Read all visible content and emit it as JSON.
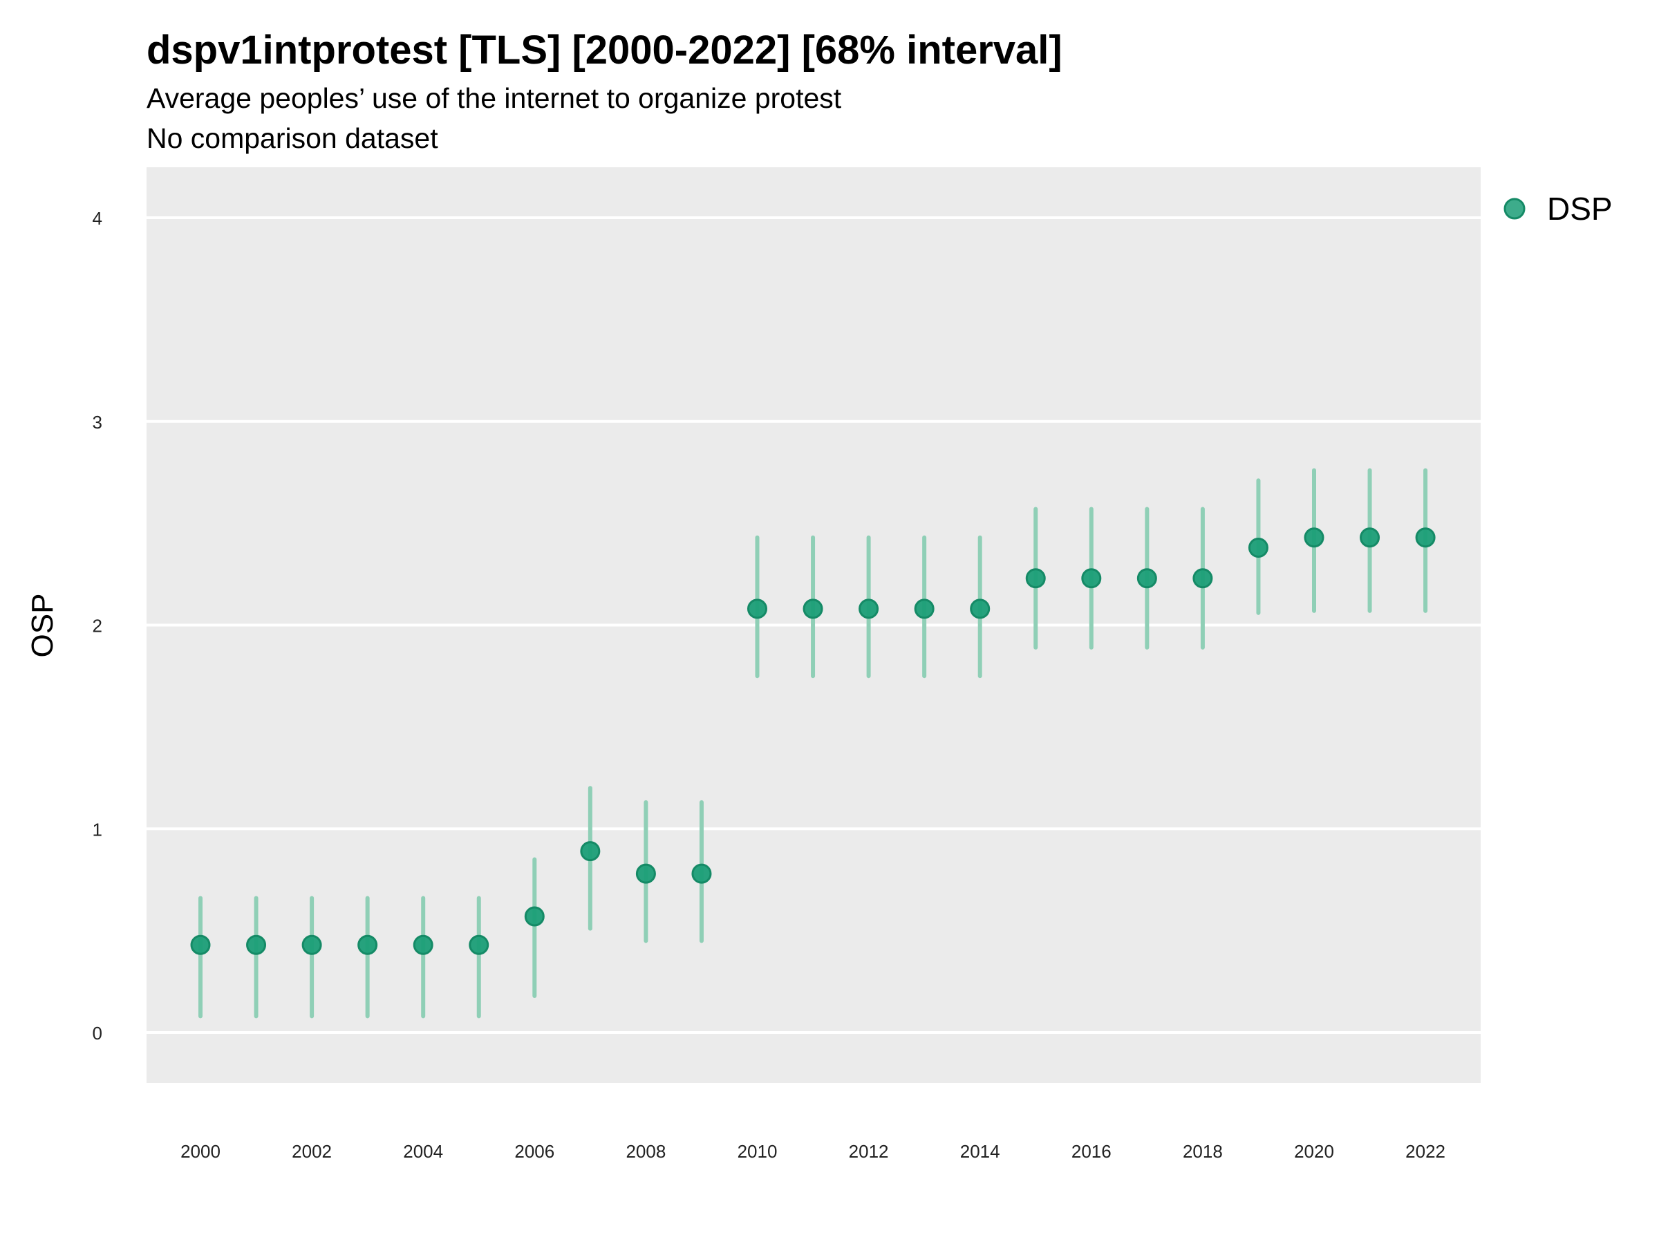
{
  "chart_data": {
    "type": "scatter",
    "title": "dspv1intprotest [TLS] [2000-2022] [68% interval]",
    "subtitle": "Average peoples’ use of the internet to organize protest",
    "subtitle2": "No comparison dataset",
    "ylabel": "OSP",
    "xlabel": "",
    "ylim": [
      -0.25,
      4.25
    ],
    "xlim": [
      1999,
      2023
    ],
    "y_ticks": [
      "0",
      "1",
      "2",
      "3",
      "4"
    ],
    "x_ticks": [
      "2000",
      "2002",
      "2004",
      "2006",
      "2008",
      "2010",
      "2012",
      "2014",
      "2016",
      "2018",
      "2020",
      "2022"
    ],
    "grid": true,
    "legend_position": "right",
    "colors": {
      "point": "#1b9e77",
      "interval": "#8fcfb6",
      "panel": "#ebebeb",
      "grid": "#ffffff"
    },
    "series": [
      {
        "name": "DSP",
        "x": [
          2000,
          2001,
          2002,
          2003,
          2004,
          2005,
          2006,
          2007,
          2008,
          2009,
          2010,
          2011,
          2012,
          2013,
          2014,
          2015,
          2016,
          2017,
          2018,
          2019,
          2020,
          2021,
          2022
        ],
        "y": [
          0.43,
          0.43,
          0.43,
          0.43,
          0.43,
          0.43,
          0.57,
          0.89,
          0.78,
          0.78,
          2.08,
          2.08,
          2.08,
          2.08,
          2.08,
          2.23,
          2.23,
          2.23,
          2.23,
          2.38,
          2.43,
          2.43,
          2.43
        ],
        "lower": [
          0.08,
          0.08,
          0.08,
          0.08,
          0.08,
          0.08,
          0.18,
          0.51,
          0.45,
          0.45,
          1.75,
          1.75,
          1.75,
          1.75,
          1.75,
          1.89,
          1.89,
          1.89,
          1.89,
          2.06,
          2.07,
          2.07,
          2.07
        ],
        "upper": [
          0.66,
          0.66,
          0.66,
          0.66,
          0.66,
          0.66,
          0.85,
          1.2,
          1.13,
          1.13,
          2.43,
          2.43,
          2.43,
          2.43,
          2.43,
          2.57,
          2.57,
          2.57,
          2.57,
          2.71,
          2.76,
          2.76,
          2.76
        ]
      }
    ]
  }
}
